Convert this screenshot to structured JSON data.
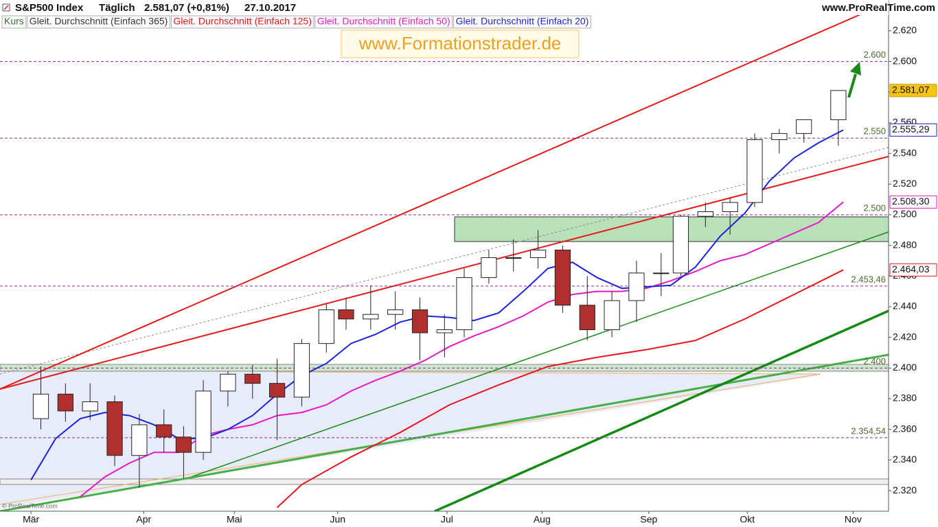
{
  "chart_data": {
    "type": "candlestick",
    "title": "S&P500 Index",
    "period": "Täglich",
    "quote": "2.581,07 (+0,81%)",
    "date": "27.10.2017",
    "source": "www.ProRealTime.com",
    "watermark": "www.Formationstrader.de",
    "copyright": "© ProRealTime.com",
    "price_name": "Kurs",
    "up_color": "#ffffff",
    "down_color": "#b03030",
    "x": [
      2,
      7,
      12,
      17,
      22,
      27,
      31,
      35,
      40,
      45,
      50,
      55,
      60,
      64,
      69,
      74,
      79,
      84,
      88,
      93,
      98,
      103,
      108,
      113,
      118,
      123,
      128,
      132,
      137,
      142,
      147,
      152,
      157,
      164
    ],
    "open": [
      2367,
      2383,
      2372,
      2378,
      2343,
      2363,
      2355,
      2345,
      2385,
      2396,
      2390,
      2381,
      2416,
      2438,
      2432,
      2435,
      2438,
      2423,
      2425,
      2459,
      2472,
      2472,
      2477,
      2441,
      2425,
      2444,
      2462,
      2462,
      2499,
      2502,
      2508,
      2549,
      2553,
      2562
    ],
    "high": [
      2401,
      2390,
      2390,
      2382,
      2370,
      2373,
      2362,
      2392,
      2398,
      2402,
      2406,
      2419,
      2442,
      2446,
      2454,
      2450,
      2446,
      2435,
      2465,
      2477,
      2484,
      2490,
      2480,
      2460,
      2450,
      2470,
      2475,
      2500,
      2508,
      2511,
      2553,
      2556,
      2562,
      2578
    ],
    "low": [
      2360,
      2365,
      2366,
      2336,
      2322,
      2345,
      2328,
      2340,
      2375,
      2380,
      2353,
      2375,
      2410,
      2425,
      2425,
      2425,
      2405,
      2407,
      2420,
      2455,
      2463,
      2465,
      2436,
      2418,
      2420,
      2430,
      2447,
      2460,
      2492,
      2487,
      2505,
      2540,
      2547,
      2545
    ],
    "close": [
      2383,
      2372,
      2378,
      2343,
      2363,
      2355,
      2345,
      2385,
      2396,
      2390,
      2381,
      2416,
      2438,
      2432,
      2435,
      2438,
      2423,
      2425,
      2459,
      2472,
      2472,
      2477,
      2441,
      2425,
      2444,
      2462,
      2462,
      2499,
      2502,
      2508,
      2549,
      2553,
      2562,
      2581.07
    ],
    "last_label": "2.581,07",
    "series": [
      {
        "name": "Gleit. Durchschnitt (Einfach 365)",
        "color": "#333333",
        "x": [],
        "values": []
      },
      {
        "name": "Gleit. Durchschnitt (Einfach 125)",
        "color": "#e8141b",
        "x": [
          50,
          55,
          65,
          75,
          85,
          95,
          105,
          115,
          125,
          135,
          145,
          155,
          165
        ],
        "values": [
          2309,
          2324,
          2342,
          2358,
          2376,
          2389,
          2401,
          2407,
          2412,
          2418,
          2432,
          2448,
          2464.03
        ],
        "last_label": "2.464,03"
      },
      {
        "name": "Gleit. Durchschnitt (Einfach 50)",
        "color": "#e619c8",
        "x": [
          10,
          15,
          20,
          25,
          30,
          35,
          40,
          45,
          50,
          55,
          60,
          65,
          70,
          75,
          80,
          85,
          90,
          95,
          100,
          105,
          110,
          115,
          120,
          125,
          130,
          135,
          140,
          145,
          150,
          155,
          160,
          165
        ],
        "values": [
          2316,
          2329,
          2338,
          2345,
          2345,
          2356,
          2360,
          2363,
          2369,
          2371,
          2376,
          2385,
          2392,
          2398,
          2405,
          2414,
          2421,
          2427,
          2434,
          2443,
          2448,
          2450,
          2450,
          2452,
          2457,
          2463,
          2470,
          2474,
          2481,
          2488,
          2495,
          2508.3
        ],
        "last_label": "2.508,30"
      },
      {
        "name": "Gleit. Durchschnitt (Einfach 20)",
        "color": "#1c24d8",
        "x": [
          0,
          5,
          10,
          15,
          20,
          25,
          30,
          35,
          40,
          45,
          50,
          55,
          60,
          65,
          70,
          75,
          80,
          85,
          90,
          95,
          100,
          105,
          110,
          115,
          120,
          125,
          130,
          135,
          140,
          145,
          150,
          155,
          160,
          165
        ],
        "values": [
          2327,
          2354,
          2367,
          2371,
          2369,
          2363,
          2354,
          2354,
          2360,
          2369,
          2383,
          2395,
          2403,
          2416,
          2422,
          2430,
          2434,
          2433,
          2431,
          2436,
          2450,
          2465,
          2469,
          2459,
          2452,
          2453,
          2454,
          2466,
          2486,
          2501,
          2522,
          2537,
          2547,
          2555.29
        ],
        "last_label": "2.555,29"
      }
    ],
    "levels": [
      {
        "value": 2600,
        "label": "2.600"
      },
      {
        "value": 2550,
        "label": "2.550"
      },
      {
        "value": 2500,
        "label": "2.500"
      },
      {
        "value": 2453.46,
        "label": "2.453,46"
      },
      {
        "value": 2400,
        "label": "2.400"
      },
      {
        "value": 2354.54,
        "label": "2.354,54"
      }
    ],
    "xlim": [
      -6.3,
      174.2
    ],
    "ylim": [
      2306.6,
      2640.1
    ],
    "xticks": [
      {
        "value": 0,
        "label": "Mär"
      },
      {
        "value": 22.9,
        "label": "Apr"
      },
      {
        "value": 41.3,
        "label": "Mai"
      },
      {
        "value": 62.3,
        "label": "Jun"
      },
      {
        "value": 84.5,
        "label": "Jul"
      },
      {
        "value": 103.8,
        "label": "Aug"
      },
      {
        "value": 125.5,
        "label": "Sep"
      },
      {
        "value": 145.5,
        "label": "Okt"
      },
      {
        "value": 167,
        "label": "Nov"
      }
    ],
    "yticks": [
      {
        "value": 2320,
        "label": "2.320"
      },
      {
        "value": 2340,
        "label": "2.340"
      },
      {
        "value": 2360,
        "label": "2.360"
      },
      {
        "value": 2380,
        "label": "2.380"
      },
      {
        "value": 2400,
        "label": "2.400"
      },
      {
        "value": 2420,
        "label": "2.420"
      },
      {
        "value": 2440,
        "label": "2.440"
      },
      {
        "value": 2460,
        "label": "2.460"
      },
      {
        "value": 2480,
        "label": "2.480"
      },
      {
        "value": 2500,
        "label": "2.500"
      },
      {
        "value": 2520,
        "label": "2.520"
      },
      {
        "value": 2540,
        "label": "2.540"
      },
      {
        "value": 2560,
        "label": "2.560"
      },
      {
        "value": 2580,
        "label": "2.580"
      },
      {
        "value": 2600,
        "label": "2.600"
      },
      {
        "value": 2620,
        "label": "2.620"
      }
    ],
    "grid": false
  }
}
